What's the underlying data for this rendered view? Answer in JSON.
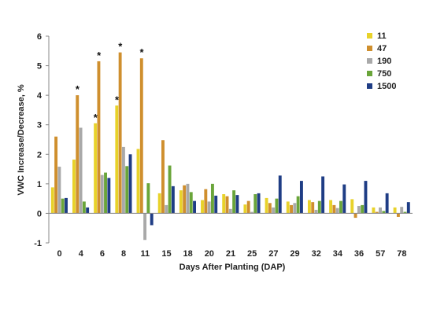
{
  "chart_data": {
    "type": "bar",
    "xlabel": "Days After Planting (DAP)",
    "ylabel": "VWC Increase/Decrease, %",
    "ylim": [
      -1,
      6
    ],
    "yticks": [
      -1,
      0,
      1,
      2,
      3,
      4,
      5,
      6
    ],
    "categories": [
      "0",
      "4",
      "6",
      "8",
      "11",
      "15",
      "18",
      "20",
      "21",
      "25",
      "27",
      "29",
      "32",
      "34",
      "36",
      "57",
      "78"
    ],
    "series": [
      {
        "name": "11",
        "color": "#e8d22a",
        "values": [
          0.88,
          1.82,
          3.05,
          3.65,
          2.18,
          0.68,
          0.78,
          0.45,
          0.65,
          0.3,
          0.52,
          0.4,
          0.45,
          0.45,
          0.48,
          0.2,
          0.2
        ]
      },
      {
        "name": "47",
        "color": "#cf8f2e",
        "values": [
          2.6,
          4.0,
          5.15,
          5.45,
          5.25,
          2.48,
          0.95,
          0.82,
          0.58,
          0.42,
          0.35,
          0.28,
          0.38,
          0.28,
          -0.15,
          0.05,
          -0.12
        ]
      },
      {
        "name": "190",
        "color": "#a9a9a9",
        "values": [
          1.58,
          2.9,
          1.3,
          2.25,
          -0.9,
          0.28,
          1.0,
          0.4,
          0.15,
          0.05,
          0.2,
          0.35,
          0.12,
          0.18,
          0.25,
          0.2,
          0.22
        ]
      },
      {
        "name": "750",
        "color": "#6aa53a",
        "values": [
          0.5,
          0.4,
          1.38,
          1.6,
          1.02,
          1.62,
          0.72,
          1.0,
          0.78,
          0.65,
          0.5,
          0.58,
          0.42,
          0.42,
          0.28,
          0.08,
          0.05
        ]
      },
      {
        "name": "1500",
        "color": "#1f3d85",
        "values": [
          0.52,
          0.2,
          1.2,
          2.0,
          -0.4,
          0.92,
          0.42,
          0.6,
          0.62,
          0.68,
          1.28,
          1.1,
          1.25,
          0.98,
          1.1,
          0.68,
          0.38
        ]
      }
    ],
    "annotations": [
      {
        "category": "4",
        "series": "47",
        "mark": "*"
      },
      {
        "category": "6",
        "series": "11",
        "mark": "*"
      },
      {
        "category": "6",
        "series": "47",
        "mark": "*"
      },
      {
        "category": "8",
        "series": "11",
        "mark": "*"
      },
      {
        "category": "8",
        "series": "47",
        "mark": "*"
      },
      {
        "category": "11",
        "series": "47",
        "mark": "*"
      }
    ],
    "legend_position": "top-right",
    "grid": false
  }
}
